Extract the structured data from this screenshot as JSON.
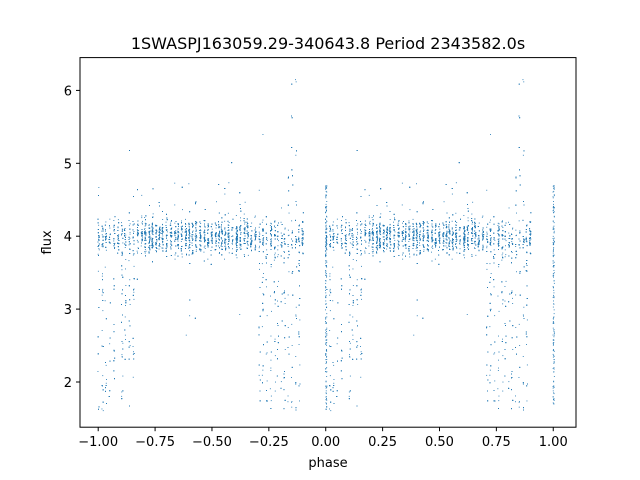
{
  "chart_data": {
    "type": "scatter",
    "title": "1SWASPJ163059.29-340643.8 Period 2343582.0s",
    "xlabel": "phase",
    "ylabel": "flux",
    "xlim": [
      -1.08,
      1.1
    ],
    "ylim": [
      1.38,
      6.45
    ],
    "xticks": [
      -1.0,
      -0.75,
      -0.5,
      -0.25,
      0.0,
      0.25,
      0.5,
      0.75,
      1.0
    ],
    "xtick_labels": [
      "−1.00",
      "−0.75",
      "−0.50",
      "−0.25",
      "0.00",
      "0.25",
      "0.50",
      "0.75",
      "1.00"
    ],
    "yticks": [
      2,
      3,
      4,
      5,
      6
    ],
    "ytick_labels": [
      "2",
      "3",
      "4",
      "5",
      "6"
    ],
    "grid": false,
    "marker_color": "#1f77b4",
    "series": [
      {
        "name": "",
        "description_points": "dense phase-folded light curve, mirrored at phase+1",
        "baseline_flux": 4.0,
        "scatter_band": [
          3.6,
          4.75
        ],
        "dip_phases": [
          -1.0,
          -0.95,
          -0.87,
          -0.27,
          -0.2,
          -0.14,
          0.0,
          0.05,
          0.13,
          0.73,
          0.8,
          0.86,
          1.0
        ],
        "dip_min_flux": 1.6,
        "spike_phases": [
          -0.15,
          0.85
        ],
        "spike_max_flux": 6.25
      }
    ]
  }
}
